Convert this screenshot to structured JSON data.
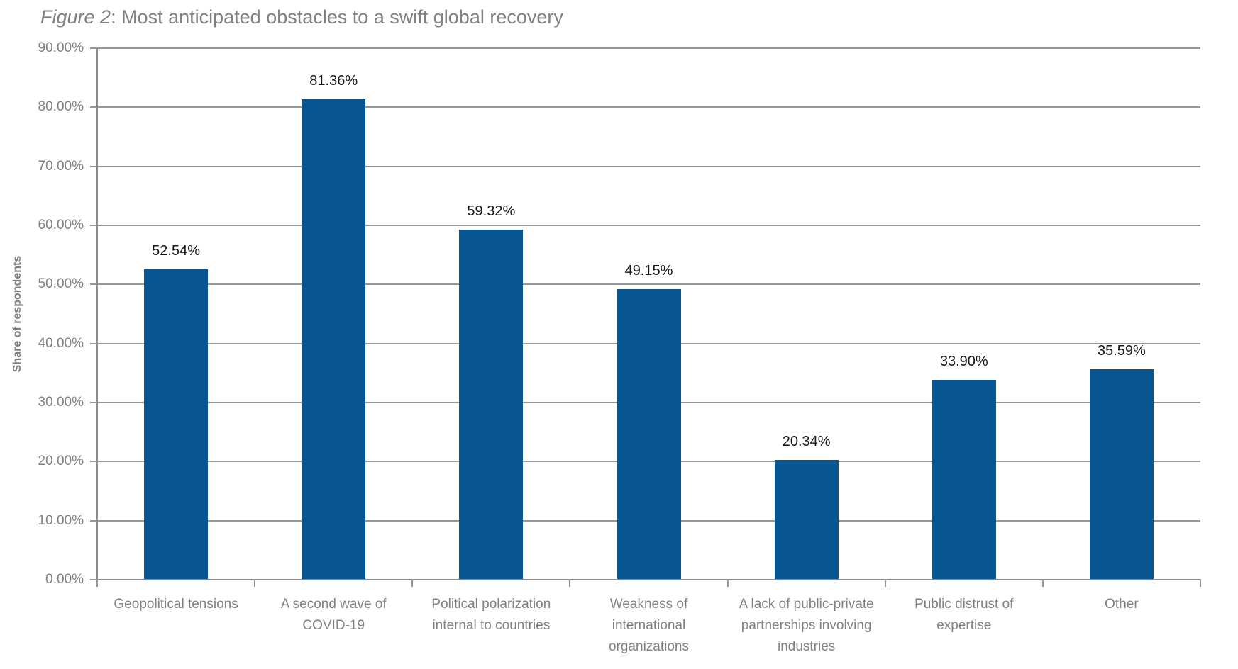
{
  "title": {
    "prefix": "Figure 2",
    "rest": ": Most anticipated obstacles to a swift global recovery"
  },
  "chart_data": {
    "type": "bar",
    "title": "Figure 2: Most anticipated obstacles to a swift global recovery",
    "categories": [
      "Geopolitical tensions",
      "A second wave of COVID-19",
      "Political polarization internal to countries",
      "Weakness of international organizations",
      "A lack of public-private partnerships involving industries",
      "Public distrust of expertise",
      "Other"
    ],
    "values": [
      52.54,
      81.36,
      59.32,
      49.15,
      20.34,
      33.9,
      35.59
    ],
    "value_labels": [
      "52.54%",
      "81.36%",
      "59.32%",
      "49.15%",
      "20.34%",
      "33.90%",
      "35.59%"
    ],
    "xlabel": "",
    "ylabel": "Share of respondents",
    "ylim": [
      0,
      90
    ],
    "y_tick_labels": [
      "0.00%",
      "10.00%",
      "20.00%",
      "30.00%",
      "40.00%",
      "50.00%",
      "60.00%",
      "70.00%",
      "80.00%",
      "90.00%"
    ],
    "grid": "horizontal",
    "legend": "none"
  },
  "colors": {
    "bar": "#075692",
    "gridline": "#969696",
    "axis": "#8c8c8c",
    "axis_text": "#808080",
    "value_label_text": "#161616",
    "title_text": "#7f7f7f",
    "background": "#ffffff"
  }
}
